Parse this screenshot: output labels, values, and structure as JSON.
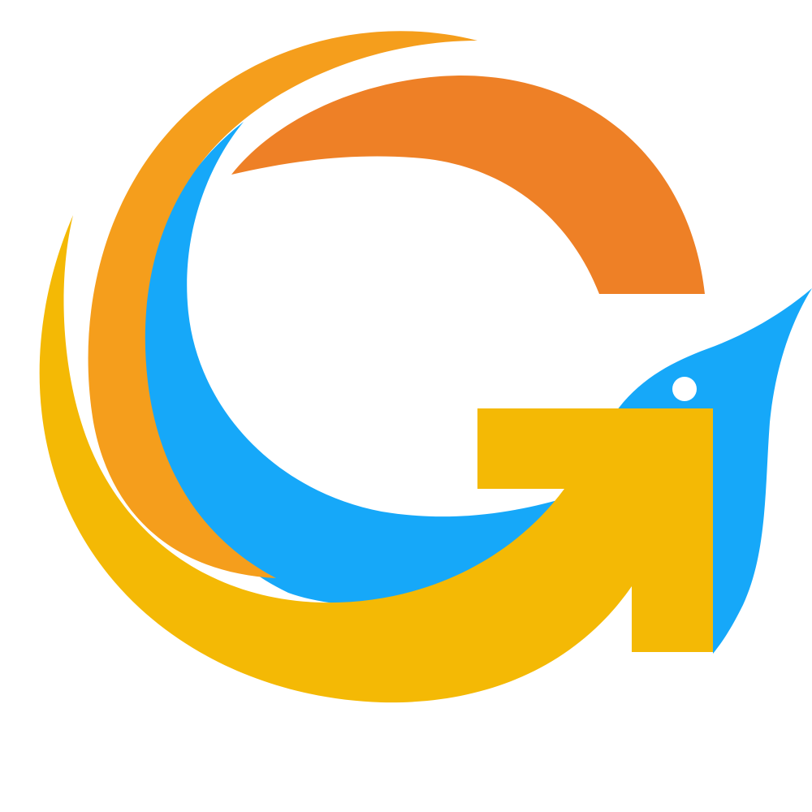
{
  "logo": {
    "letter": "G",
    "motif": "bird-head",
    "colors": {
      "background": "#FFFFFF",
      "orange_arc": "#EE8026",
      "amber_arc": "#F59E1C",
      "yellow_swoosh": "#F4B905",
      "blue_bird": "#16A8F9",
      "eye": "#FFFFFF"
    }
  }
}
